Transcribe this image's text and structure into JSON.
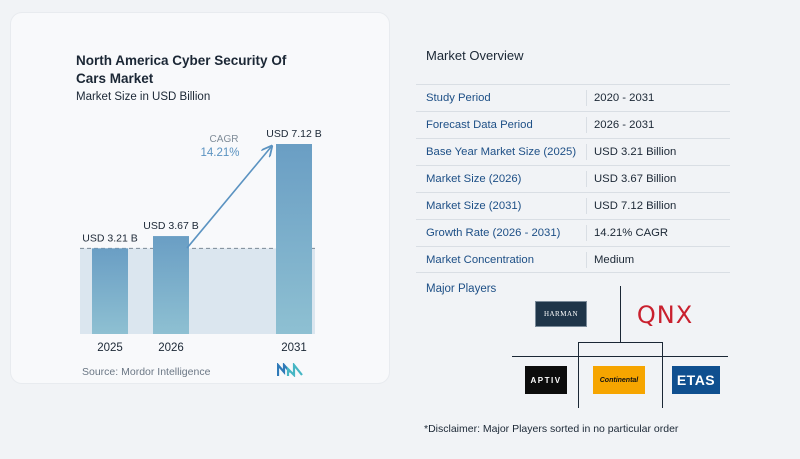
{
  "chart_data": {
    "type": "bar",
    "title": "North America Cyber Security Of Cars Market",
    "subtitle": "Market Size in USD Billion",
    "categories": [
      "2025",
      "2026",
      "2031"
    ],
    "values": [
      3.21,
      3.67,
      7.12
    ],
    "data_labels": [
      "USD 3.21 B",
      "USD 3.67 B",
      "USD 7.12 B"
    ],
    "ylim": [
      0,
      7.12
    ],
    "cagr_label": "CAGR",
    "cagr_value": "14.21%",
    "grid": false,
    "legend": "none",
    "colors": {
      "bar_top": "#6a9ec4",
      "bar_bottom": "#8ec0d2",
      "band": "#dbe6ef",
      "arrow": "#5b93c1",
      "cagr_text": "#5b93c1"
    }
  },
  "source": {
    "label": "Source:",
    "name": "Mordor Intelligence"
  },
  "overview": {
    "title": "Market Overview",
    "rows": [
      {
        "label": "Study Period",
        "value": "2020 - 2031"
      },
      {
        "label": "Forecast Data Period",
        "value": "2026 - 2031"
      },
      {
        "label": "Base Year Market Size (2025)",
        "value": "USD 3.21 Billion"
      },
      {
        "label": "Market Size (2026)",
        "value": "USD 3.67 Billion"
      },
      {
        "label": "Market Size (2031)",
        "value": "USD 7.12 Billion"
      },
      {
        "label": "Growth Rate (2026 - 2031)",
        "value": "14.21% CAGR"
      },
      {
        "label": "Market Concentration",
        "value": "Medium"
      }
    ]
  },
  "players": {
    "label": "Major Players",
    "logos": [
      {
        "name": "HARMAN",
        "text": "HARMAN"
      },
      {
        "name": "QNX",
        "text": "QNX"
      },
      {
        "name": "APTIV",
        "text": "APTIV"
      },
      {
        "name": "Continental",
        "text": "Continental"
      },
      {
        "name": "ETAS",
        "text": "ETAS"
      }
    ]
  },
  "disclaimer": "*Disclaimer: Major Players sorted in no particular order"
}
